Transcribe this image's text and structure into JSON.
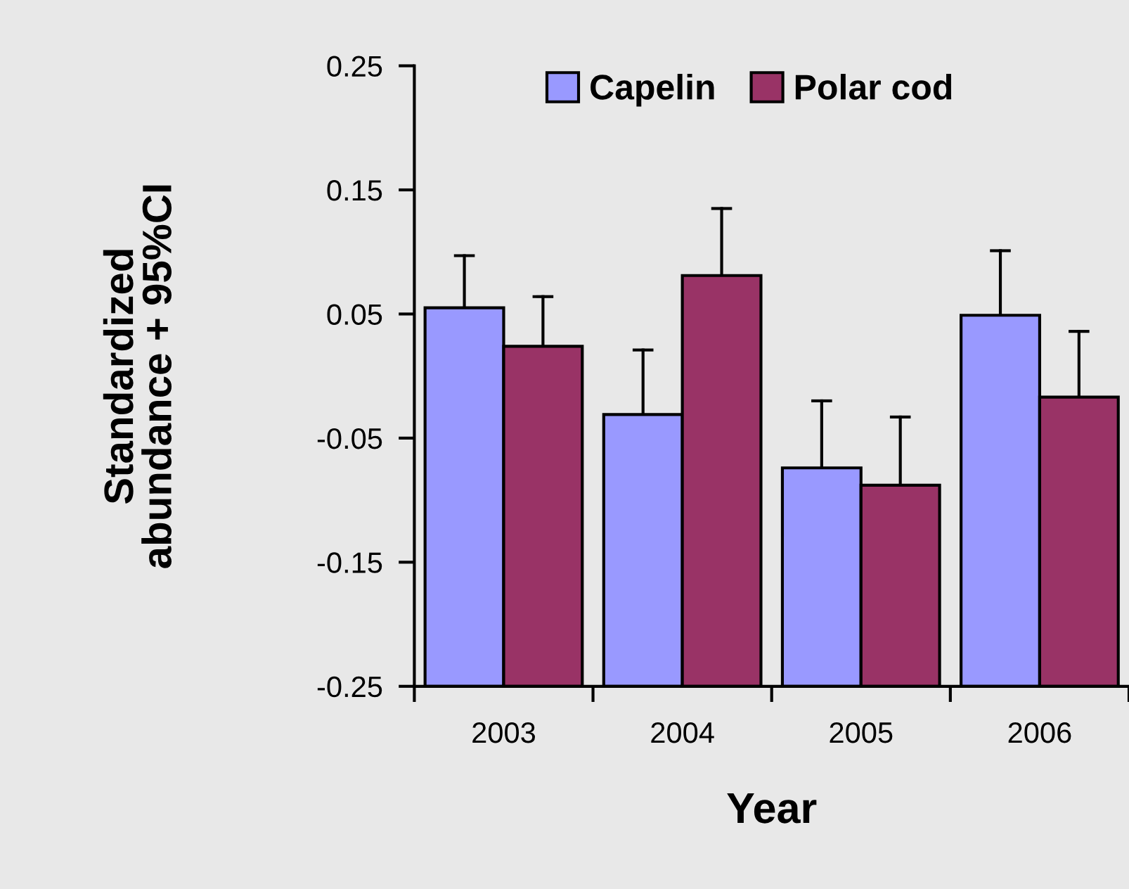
{
  "chart_data": {
    "type": "bar",
    "xlabel": "Year",
    "ylabel": "Standardized\nabundance + 95%CI",
    "categories": [
      "2003",
      "2004",
      "2005",
      "2006"
    ],
    "series": [
      {
        "name": "Capelin",
        "color": "#9999ff",
        "base": [
          -0.25,
          -0.25,
          -0.25,
          -0.25
        ],
        "values": [
          0.305,
          0.219,
          0.176,
          0.299
        ],
        "errors": [
          [
            0.055,
            0.097
          ],
          [
            -0.031,
            0.021
          ],
          [
            -0.074,
            -0.02
          ],
          [
            0.049,
            0.101
          ]
        ]
      },
      {
        "name": "Polar cod",
        "color": "#993366",
        "base": [
          -0.25,
          -0.25,
          -0.25,
          -0.25
        ],
        "values": [
          0.274,
          0.331,
          0.162,
          0.233
        ],
        "errors": [
          [
            0.024,
            0.064
          ],
          [
            0.081,
            0.135
          ],
          [
            -0.088,
            -0.033
          ],
          [
            -0.017,
            0.036
          ]
        ]
      }
    ],
    "ylim": [
      -0.25,
      0.25
    ],
    "yticks": [
      -0.25,
      -0.15,
      -0.05,
      0.05,
      0.15,
      0.25
    ],
    "legend": "top"
  }
}
